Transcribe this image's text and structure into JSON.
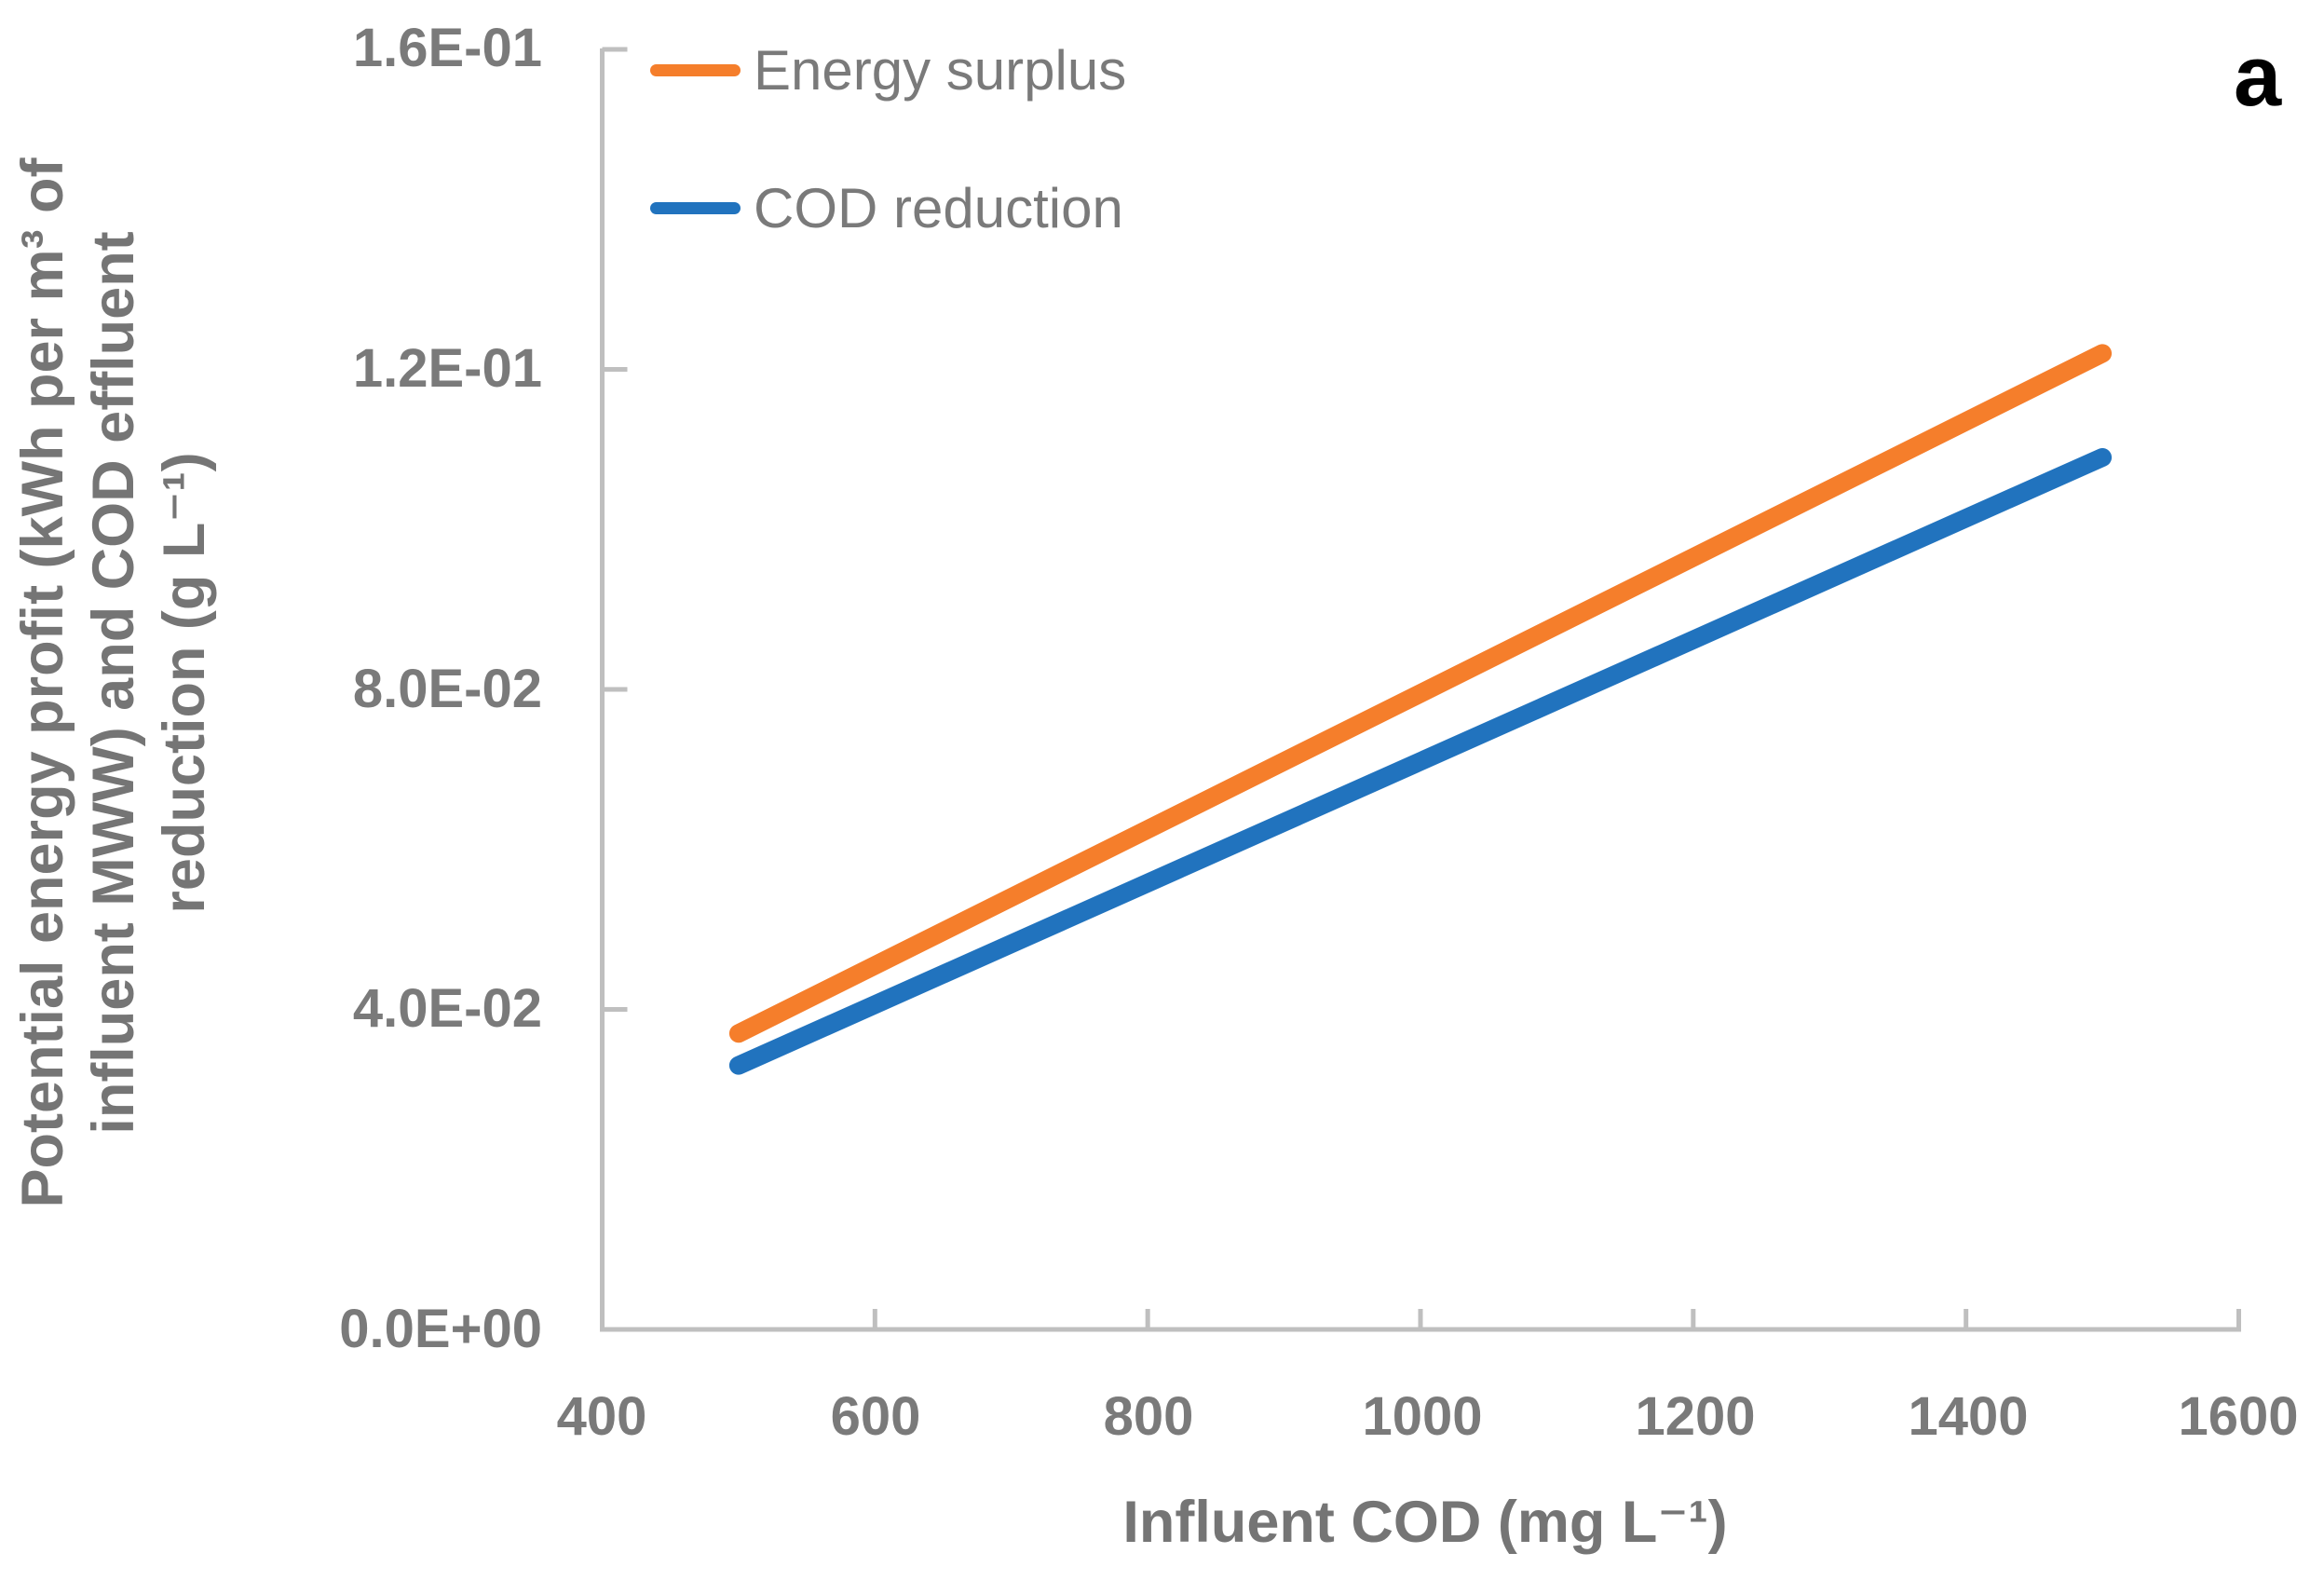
{
  "chart_data": {
    "type": "line",
    "panel_label": "a",
    "xlabel": "Influent COD (mg L⁻¹)",
    "ylabel": "Potential energy profit (kWh per m³ of influent MWW) and COD effluent reduction (g L⁻¹)",
    "ylabel_lines": [
      "Potential energy profit (kWh per m³ of",
      "influent MWW) and COD effluent",
      "reduction (g L⁻¹)"
    ],
    "xlim": [
      400,
      1600
    ],
    "ylim": [
      0,
      0.16
    ],
    "xticks": [
      400,
      600,
      800,
      1000,
      1200,
      1400,
      1600
    ],
    "xtick_labels": [
      "400",
      "600",
      "800",
      "1000",
      "1200",
      "1400",
      "1600"
    ],
    "yticks_top_to_bottom": [
      0.16,
      0.12,
      0.08,
      0.04,
      0
    ],
    "ytick_labels_top_to_bottom": [
      "1.6E-01",
      "1.2E-01",
      "8.0E-02",
      "4.0E-02",
      "0.0E+00"
    ],
    "grid": false,
    "legend_position": "inside-top-left",
    "colors": {
      "axis": "#BFBFBF",
      "text": "#7A7A7A",
      "energy_surplus": "#F57E2B",
      "cod_reduction": "#2173BE"
    },
    "series": [
      {
        "name": "Energy surplus",
        "color": "#F57E2B",
        "x": [
          500,
          1500
        ],
        "values": [
          0.037,
          0.122
        ]
      },
      {
        "name": "COD reduction",
        "color": "#2173BE",
        "x": [
          500,
          1500
        ],
        "values": [
          0.033,
          0.109
        ]
      }
    ]
  }
}
